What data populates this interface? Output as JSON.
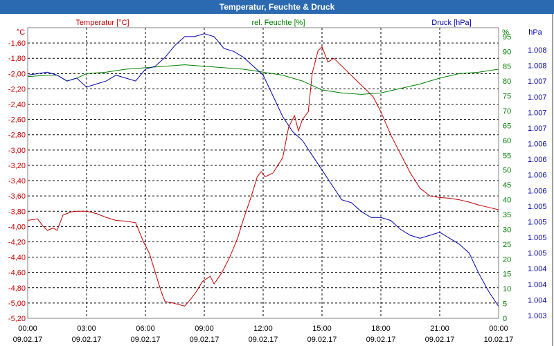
{
  "window": {
    "title": "Temperatur, Feuchte & Druck"
  },
  "chart_data": {
    "type": "line",
    "title": "Temperatur, Feuchte & Druck",
    "grid": true,
    "colors": {
      "title_bar": "#2b6ab0",
      "temperature": "#c00000",
      "humidity": "#008000",
      "pressure": "#0000aa",
      "grid": "#000000",
      "frame": "#808080"
    },
    "axes": {
      "left": {
        "unit": "°C",
        "ylim": [
          -5.2,
          -1.4
        ],
        "ticks": [
          "-1,60",
          "-1,80",
          "-2,00",
          "-2,20",
          "-2,40",
          "-2,60",
          "-2,80",
          "-3,00",
          "-3,20",
          "-3,40",
          "-3,60",
          "-3,80",
          "-4,00",
          "-4,20",
          "-4,40",
          "-4,60",
          "-4,80",
          "-5,00",
          "-5,20"
        ]
      },
      "right1": {
        "unit": "%",
        "ylim": [
          0,
          98
        ],
        "ticks": [
          "95",
          "90",
          "85",
          "80",
          "75",
          "70",
          "65",
          "60",
          "55",
          "50",
          "45",
          "40",
          "35",
          "30",
          "25",
          "20",
          "15",
          "10",
          "5",
          "0"
        ]
      },
      "right2": {
        "unit": "hPa",
        "ticks": [
          "1.008",
          "1.008",
          "1.007",
          "1.007",
          "1.007",
          "1.007",
          "1.006",
          "1.006",
          "1.006",
          "1.006",
          "1.005",
          "1.005",
          "1.005",
          "1.005",
          "1.004",
          "1.004",
          "1.004",
          "1.003"
        ]
      }
    },
    "x_ticks": [
      {
        "time": "00:00",
        "date": "09.02.17"
      },
      {
        "time": "03:00",
        "date": "09.02.17"
      },
      {
        "time": "06:00",
        "date": "09.02.17"
      },
      {
        "time": "09:00",
        "date": "09.02.17"
      },
      {
        "time": "12:00",
        "date": "09.02.17"
      },
      {
        "time": "15:00",
        "date": "09.02.17"
      },
      {
        "time": "18:00",
        "date": "09.02.17"
      },
      {
        "time": "21:00",
        "date": "09.02.17"
      },
      {
        "time": "00:00",
        "date": "10.02.17"
      }
    ],
    "x_range_hours": [
      0,
      24
    ],
    "series": [
      {
        "name": "Temperatur [°C]",
        "axis": "left",
        "points": [
          [
            0,
            -3.92
          ],
          [
            0.5,
            -3.9
          ],
          [
            0.8,
            -4.0
          ],
          [
            1.0,
            -4.05
          ],
          [
            1.3,
            -4.02
          ],
          [
            1.5,
            -4.05
          ],
          [
            1.8,
            -3.85
          ],
          [
            2.2,
            -3.81
          ],
          [
            2.5,
            -3.8
          ],
          [
            3.0,
            -3.8
          ],
          [
            3.5,
            -3.83
          ],
          [
            4.0,
            -3.88
          ],
          [
            4.5,
            -3.92
          ],
          [
            5.0,
            -3.93
          ],
          [
            5.5,
            -3.95
          ],
          [
            5.9,
            -4.2
          ],
          [
            6.2,
            -4.35
          ],
          [
            6.5,
            -4.6
          ],
          [
            6.8,
            -4.85
          ],
          [
            7.0,
            -4.98
          ],
          [
            7.4,
            -5.0
          ],
          [
            7.7,
            -5.02
          ],
          [
            8.0,
            -5.04
          ],
          [
            8.3,
            -4.95
          ],
          [
            8.6,
            -4.85
          ],
          [
            8.9,
            -4.72
          ],
          [
            9.3,
            -4.65
          ],
          [
            9.5,
            -4.75
          ],
          [
            9.9,
            -4.6
          ],
          [
            10.3,
            -4.4
          ],
          [
            10.7,
            -4.15
          ],
          [
            11.0,
            -3.9
          ],
          [
            11.4,
            -3.6
          ],
          [
            11.7,
            -3.35
          ],
          [
            11.9,
            -3.28
          ],
          [
            12.1,
            -3.35
          ],
          [
            12.5,
            -3.3
          ],
          [
            13.0,
            -3.1
          ],
          [
            13.3,
            -2.7
          ],
          [
            13.6,
            -2.55
          ],
          [
            13.8,
            -2.75
          ],
          [
            14.0,
            -2.6
          ],
          [
            14.3,
            -2.5
          ],
          [
            14.5,
            -2.0
          ],
          [
            14.8,
            -1.7
          ],
          [
            15.0,
            -1.65
          ],
          [
            15.3,
            -1.85
          ],
          [
            15.6,
            -1.8
          ],
          [
            16.0,
            -1.9
          ],
          [
            16.4,
            -2.0
          ],
          [
            16.8,
            -2.1
          ],
          [
            17.2,
            -2.2
          ],
          [
            17.6,
            -2.3
          ],
          [
            18.0,
            -2.5
          ],
          [
            18.5,
            -2.8
          ],
          [
            19.0,
            -3.05
          ],
          [
            19.5,
            -3.3
          ],
          [
            20.0,
            -3.5
          ],
          [
            20.5,
            -3.6
          ],
          [
            21.0,
            -3.62
          ],
          [
            21.5,
            -3.63
          ],
          [
            22.0,
            -3.65
          ],
          [
            22.5,
            -3.68
          ],
          [
            23.0,
            -3.72
          ],
          [
            23.5,
            -3.75
          ],
          [
            24.0,
            -3.78
          ]
        ]
      },
      {
        "name": "rel. Feuchte [%]",
        "axis": "right1",
        "points": [
          [
            0,
            81.5
          ],
          [
            1.0,
            82
          ],
          [
            1.5,
            82
          ],
          [
            2.0,
            80
          ],
          [
            2.5,
            81
          ],
          [
            3.0,
            82.5
          ],
          [
            4.0,
            83
          ],
          [
            5.0,
            84
          ],
          [
            6.0,
            84.5
          ],
          [
            7.0,
            85
          ],
          [
            8.0,
            85.5
          ],
          [
            9.0,
            85
          ],
          [
            10.0,
            84.5
          ],
          [
            11.0,
            84
          ],
          [
            12.0,
            83
          ],
          [
            13.0,
            82
          ],
          [
            14.0,
            80
          ],
          [
            15.0,
            77
          ],
          [
            16.0,
            76
          ],
          [
            17.0,
            75.5
          ],
          [
            18.0,
            76
          ],
          [
            19.0,
            77.5
          ],
          [
            20.0,
            79
          ],
          [
            21.0,
            81
          ],
          [
            22.0,
            82.5
          ],
          [
            23.0,
            83
          ],
          [
            24.0,
            84
          ]
        ]
      },
      {
        "name": "Druck [hPa]",
        "axis": "right2",
        "points": [
          [
            0,
            82
          ],
          [
            0.5,
            82.5
          ],
          [
            1.0,
            83
          ],
          [
            1.5,
            82
          ],
          [
            2.0,
            80
          ],
          [
            2.5,
            81
          ],
          [
            3.0,
            78
          ],
          [
            3.5,
            79
          ],
          [
            4.0,
            80
          ],
          [
            4.5,
            82
          ],
          [
            5.0,
            81
          ],
          [
            5.5,
            80
          ],
          [
            6.0,
            84
          ],
          [
            6.5,
            85
          ],
          [
            7.0,
            88
          ],
          [
            7.5,
            92
          ],
          [
            8.0,
            95
          ],
          [
            8.5,
            95
          ],
          [
            9.0,
            96
          ],
          [
            9.5,
            95
          ],
          [
            10.0,
            91
          ],
          [
            10.5,
            90
          ],
          [
            11.0,
            88
          ],
          [
            11.5,
            85
          ],
          [
            12.0,
            82
          ],
          [
            12.5,
            75
          ],
          [
            13.0,
            68
          ],
          [
            13.5,
            63
          ],
          [
            14.0,
            60
          ],
          [
            14.5,
            55
          ],
          [
            15.0,
            50
          ],
          [
            15.5,
            45
          ],
          [
            16.0,
            40
          ],
          [
            16.5,
            39
          ],
          [
            17.0,
            36
          ],
          [
            17.5,
            34
          ],
          [
            18.0,
            34
          ],
          [
            18.5,
            33
          ],
          [
            19.0,
            30
          ],
          [
            19.5,
            28
          ],
          [
            20.0,
            27
          ],
          [
            20.5,
            28
          ],
          [
            21.0,
            29
          ],
          [
            21.5,
            27
          ],
          [
            22.0,
            25
          ],
          [
            22.5,
            22
          ],
          [
            23.0,
            15
          ],
          [
            23.5,
            9
          ],
          [
            24.0,
            4
          ]
        ]
      }
    ]
  }
}
